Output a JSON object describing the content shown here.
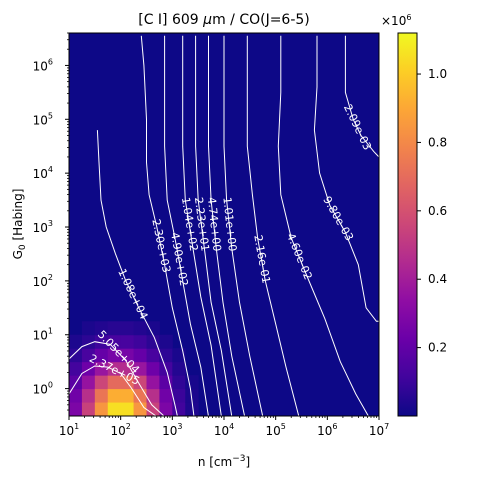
{
  "chart_data": {
    "type": "heatmap",
    "title_main": "[C I] 609 ",
    "title_mu": "μ",
    "title_rest": "m / CO(J=6-5)",
    "xlabel_main": "n [cm",
    "xlabel_sup": "−3",
    "xlabel_end": "]",
    "ylabel_g": "G",
    "ylabel_sub": "0",
    "ylabel_rest": " [Habing]",
    "x_scale": "log",
    "y_scale": "log",
    "xlim": [
      10,
      10000000
    ],
    "ylim": [
      0.31,
      4000000
    ],
    "x_ticks": [
      {
        "value": 10,
        "base": "10",
        "exp": "1"
      },
      {
        "value": 100,
        "base": "10",
        "exp": "2"
      },
      {
        "value": 1000,
        "base": "10",
        "exp": "3"
      },
      {
        "value": 10000,
        "base": "10",
        "exp": "4"
      },
      {
        "value": 100000,
        "base": "10",
        "exp": "5"
      },
      {
        "value": 1000000,
        "base": "10",
        "exp": "6"
      },
      {
        "value": 10000000,
        "base": "10",
        "exp": "7"
      }
    ],
    "y_ticks": [
      {
        "value": 1,
        "base": "10",
        "exp": "0"
      },
      {
        "value": 10,
        "base": "10",
        "exp": "1"
      },
      {
        "value": 100,
        "base": "10",
        "exp": "2"
      },
      {
        "value": 1000,
        "base": "10",
        "exp": "3"
      },
      {
        "value": 10000,
        "base": "10",
        "exp": "4"
      },
      {
        "value": 100000,
        "base": "10",
        "exp": "5"
      },
      {
        "value": 1000000,
        "base": "10",
        "exp": "6"
      }
    ],
    "colormap": "plasma",
    "colorbar": {
      "range": [
        0,
        1120000
      ],
      "multiplier_base": "×10",
      "multiplier_exp": "6",
      "ticks": [
        {
          "value": 200000,
          "label": "0.2"
        },
        {
          "value": 400000,
          "label": "0.4"
        },
        {
          "value": 600000,
          "label": "0.6"
        },
        {
          "value": 800000,
          "label": "0.8"
        },
        {
          "value": 1000000,
          "label": "1.0"
        }
      ]
    },
    "heatmap_cells": {
      "peak_value": 1100000,
      "peak_log_n": 2.0,
      "peak_log_g": -0.5,
      "grid_x_log_start": 1.0,
      "grid_x_log_step": 0.25,
      "grid_y_log_start": -0.5,
      "grid_y_log_step": 0.25
    },
    "contours": [
      {
        "label": "2.37e+05",
        "points": [
          [
            1.0,
            -0.1
          ],
          [
            1.25,
            0.28
          ],
          [
            1.5,
            0.42
          ],
          [
            1.75,
            0.4
          ],
          [
            2.0,
            0.28
          ],
          [
            2.2,
            0.02
          ],
          [
            2.45,
            -0.35
          ],
          [
            2.7,
            -0.52
          ]
        ]
      },
      {
        "label": "5.05e+04",
        "points": [
          [
            1.0,
            0.55
          ],
          [
            1.25,
            0.78
          ],
          [
            1.5,
            0.87
          ],
          [
            1.8,
            0.82
          ],
          [
            2.1,
            0.52
          ],
          [
            2.35,
            0.1
          ],
          [
            2.6,
            -0.3
          ],
          [
            2.85,
            -0.52
          ]
        ]
      },
      {
        "label": "1.08e+04",
        "points": [
          [
            1.55,
            4.8
          ],
          [
            1.58,
            4.2
          ],
          [
            1.62,
            3.5
          ],
          [
            1.72,
            3.0
          ],
          [
            1.9,
            2.5
          ],
          [
            2.1,
            2.0
          ],
          [
            2.35,
            1.5
          ],
          [
            2.65,
            0.95
          ],
          [
            2.9,
            0.3
          ],
          [
            3.05,
            -0.3
          ],
          [
            3.1,
            -0.52
          ]
        ]
      },
      {
        "label": "2.30e+03",
        "points": [
          [
            2.4,
            6.55
          ],
          [
            2.45,
            6.0
          ],
          [
            2.5,
            5.0
          ],
          [
            2.5,
            4.2
          ],
          [
            2.55,
            3.6
          ],
          [
            2.7,
            3.0
          ],
          [
            2.85,
            2.3
          ],
          [
            3.0,
            1.5
          ],
          [
            3.2,
            0.7
          ],
          [
            3.35,
            0.0
          ],
          [
            3.42,
            -0.52
          ]
        ]
      },
      {
        "label": "4.90e+02",
        "points": [
          [
            2.85,
            6.55
          ],
          [
            2.85,
            5.5
          ],
          [
            2.85,
            4.5
          ],
          [
            2.9,
            3.5
          ],
          [
            3.05,
            2.8
          ],
          [
            3.2,
            2.0
          ],
          [
            3.35,
            1.2
          ],
          [
            3.55,
            0.4
          ],
          [
            3.7,
            -0.52
          ]
        ]
      },
      {
        "label": "1.04e+02",
        "points": [
          [
            3.2,
            6.55
          ],
          [
            3.2,
            5.5
          ],
          [
            3.2,
            4.5
          ],
          [
            3.25,
            3.5
          ],
          [
            3.4,
            2.6
          ],
          [
            3.55,
            1.7
          ],
          [
            3.75,
            0.8
          ],
          [
            3.95,
            -0.52
          ]
        ]
      },
      {
        "label": "2.23e+01",
        "points": [
          [
            3.45,
            6.55
          ],
          [
            3.45,
            5.5
          ],
          [
            3.45,
            4.5
          ],
          [
            3.5,
            3.5
          ],
          [
            3.62,
            2.6
          ],
          [
            3.75,
            1.6
          ],
          [
            3.95,
            0.7
          ],
          [
            4.15,
            -0.52
          ]
        ]
      },
      {
        "label": "4.74e+00",
        "points": [
          [
            3.7,
            6.55
          ],
          [
            3.7,
            5.5
          ],
          [
            3.7,
            4.5
          ],
          [
            3.75,
            3.5
          ],
          [
            3.85,
            2.6
          ],
          [
            3.98,
            1.6
          ],
          [
            4.15,
            0.6
          ],
          [
            4.4,
            -0.52
          ]
        ]
      },
      {
        "label": "1.01e+00",
        "points": [
          [
            4.0,
            6.55
          ],
          [
            4.0,
            5.5
          ],
          [
            4.0,
            4.5
          ],
          [
            4.05,
            3.5
          ],
          [
            4.15,
            2.6
          ],
          [
            4.3,
            1.6
          ],
          [
            4.5,
            0.6
          ],
          [
            4.75,
            -0.52
          ]
        ]
      },
      {
        "label": "2.16e-01",
        "points": [
          [
            4.45,
            6.55
          ],
          [
            4.45,
            5.5
          ],
          [
            4.45,
            4.5
          ],
          [
            4.55,
            3.6
          ],
          [
            4.65,
            2.8
          ],
          [
            4.8,
            2.0
          ],
          [
            5.0,
            1.2
          ],
          [
            5.2,
            0.4
          ],
          [
            5.45,
            -0.52
          ]
        ]
      },
      {
        "label": "4.60e-02",
        "points": [
          [
            5.1,
            6.55
          ],
          [
            5.1,
            5.5
          ],
          [
            5.05,
            4.5
          ],
          [
            5.1,
            3.6
          ],
          [
            5.3,
            2.8
          ],
          [
            5.6,
            2.1
          ],
          [
            5.95,
            1.3
          ],
          [
            6.25,
            0.5
          ],
          [
            6.55,
            -0.1
          ],
          [
            6.8,
            -0.52
          ]
        ]
      },
      {
        "label": "9.80e-03",
        "points": [
          [
            5.8,
            6.55
          ],
          [
            5.8,
            5.6
          ],
          [
            5.75,
            4.8
          ],
          [
            5.85,
            4.0
          ],
          [
            6.05,
            3.4
          ],
          [
            6.35,
            2.9
          ],
          [
            6.6,
            2.3
          ],
          [
            6.75,
            1.5
          ],
          [
            6.95,
            1.25
          ],
          [
            7.0,
            1.25
          ]
        ]
      },
      {
        "label": "2.09e-03",
        "points": [
          [
            6.35,
            6.55
          ],
          [
            6.35,
            6.0
          ],
          [
            6.35,
            5.5
          ],
          [
            6.5,
            5.0
          ],
          [
            6.65,
            4.7
          ],
          [
            6.9,
            4.4
          ],
          [
            7.0,
            4.3
          ]
        ]
      }
    ]
  }
}
